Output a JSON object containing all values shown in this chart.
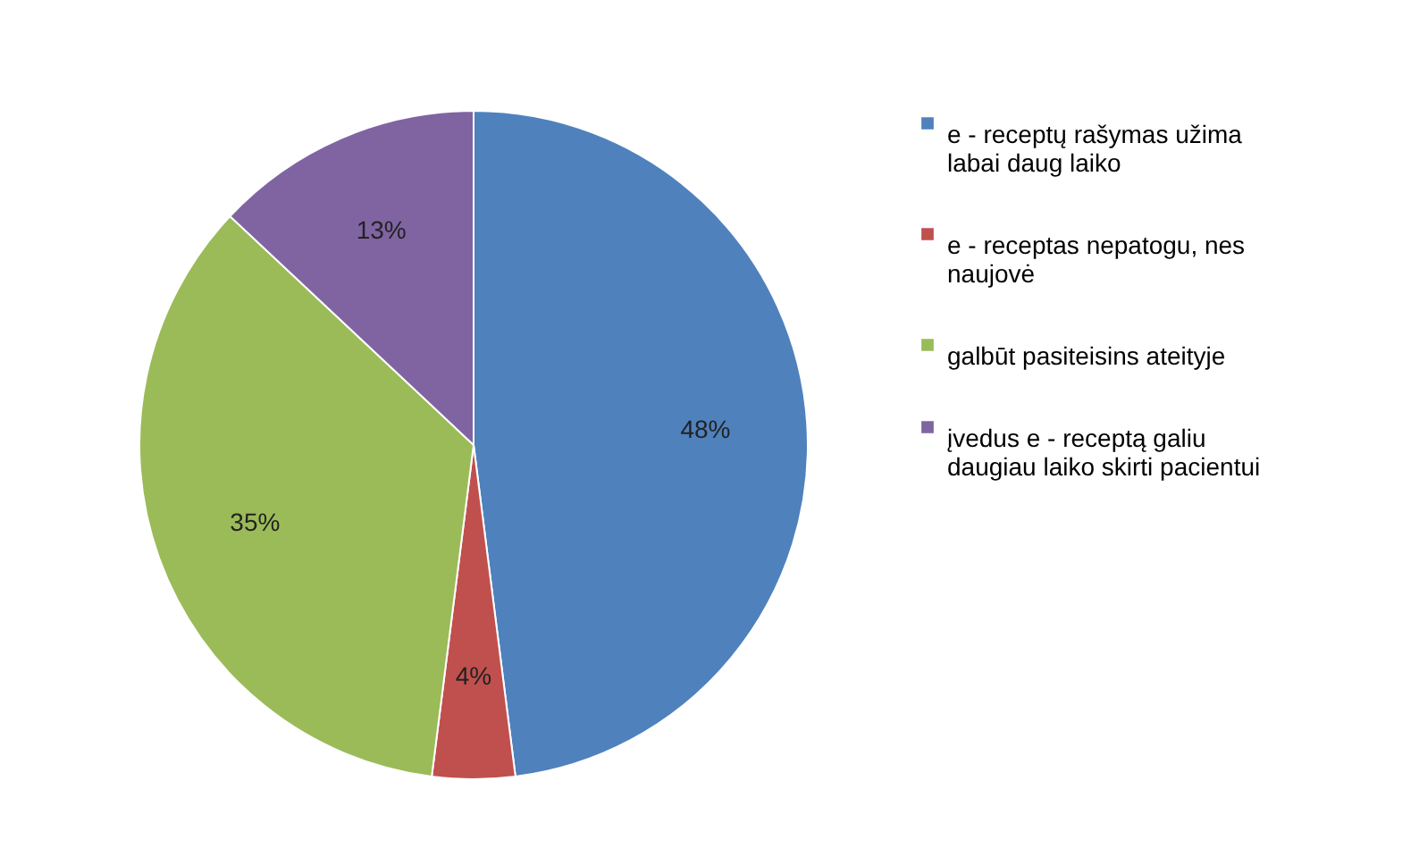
{
  "chart_data": {
    "type": "pie",
    "categories": [
      "e - receptų rašymas užima labai daug laiko",
      "e - receptas nepatogu, nes naujovė",
      "galbūt pasiteisins ateityje",
      "įvedus e - receptą galiu daugiau laiko skirti pacientui"
    ],
    "values": [
      48,
      4,
      35,
      13
    ],
    "colors": [
      "#4f81bd",
      "#c0504d",
      "#9bbb59",
      "#8064a2"
    ],
    "value_labels": [
      "48%",
      "4%",
      "35%",
      "13%"
    ],
    "legend": "right"
  }
}
